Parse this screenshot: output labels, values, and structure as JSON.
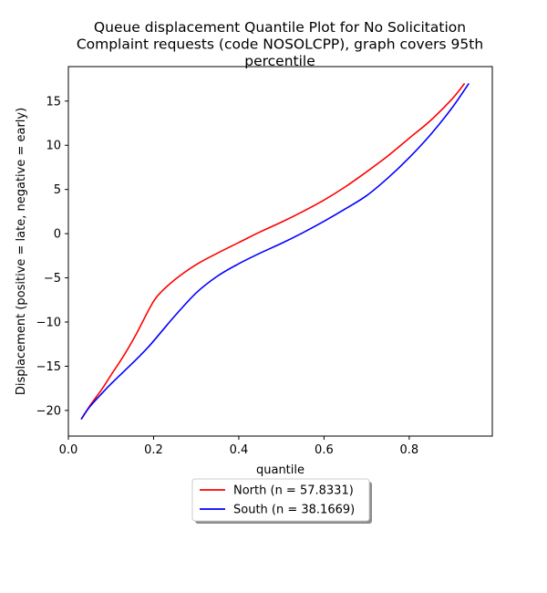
{
  "chart_data": {
    "type": "line",
    "title_lines": [
      "Queue displacement Quantile Plot for No Solicitation",
      "Complaint  requests (code NOSOLCPP), graph covers 95th",
      "percentile"
    ],
    "xlabel": "quantile",
    "ylabel": "Displacement (positive = late, negative = early)",
    "xlim": [
      -0.0,
      0.995
    ],
    "ylim": [
      -22.9,
      18.9
    ],
    "xticks": [
      0.0,
      0.2,
      0.4,
      0.6,
      0.8
    ],
    "xtick_labels": [
      "0.0",
      "0.2",
      "0.4",
      "0.6",
      "0.8"
    ],
    "yticks": [
      -20,
      -15,
      -10,
      -5,
      0,
      5,
      10,
      15
    ],
    "ytick_labels": [
      "−20",
      "−15",
      "−10",
      "−5",
      "0",
      "5",
      "10",
      "15"
    ],
    "grid": false,
    "legend_placement": "below plot, centered",
    "series": [
      {
        "name": "North (n = 57.8331)",
        "color": "#ff0000",
        "x": [
          0.03,
          0.05,
          0.08,
          0.1,
          0.13,
          0.16,
          0.19,
          0.21,
          0.25,
          0.3,
          0.35,
          0.4,
          0.45,
          0.5,
          0.55,
          0.6,
          0.65,
          0.7,
          0.75,
          0.8,
          0.85,
          0.9,
          0.93
        ],
        "y": [
          -21,
          -19.5,
          -17.5,
          -16.0,
          -13.8,
          -11.3,
          -8.5,
          -7.0,
          -5.2,
          -3.5,
          -2.2,
          -1.0,
          0.2,
          1.3,
          2.5,
          3.8,
          5.3,
          7.0,
          8.8,
          10.8,
          12.8,
          15.2,
          17.0
        ]
      },
      {
        "name": "South (n = 38.1669)",
        "color": "#0000ff",
        "x": [
          0.03,
          0.05,
          0.08,
          0.1,
          0.13,
          0.16,
          0.19,
          0.22,
          0.25,
          0.3,
          0.35,
          0.4,
          0.45,
          0.5,
          0.55,
          0.6,
          0.65,
          0.7,
          0.75,
          0.8,
          0.85,
          0.9,
          0.94
        ],
        "y": [
          -21,
          -19.6,
          -18.0,
          -17.0,
          -15.6,
          -14.2,
          -12.7,
          -11.0,
          -9.3,
          -6.7,
          -4.8,
          -3.4,
          -2.2,
          -1.1,
          0.1,
          1.4,
          2.8,
          4.3,
          6.3,
          8.6,
          11.2,
          14.2,
          17.0
        ]
      }
    ]
  }
}
